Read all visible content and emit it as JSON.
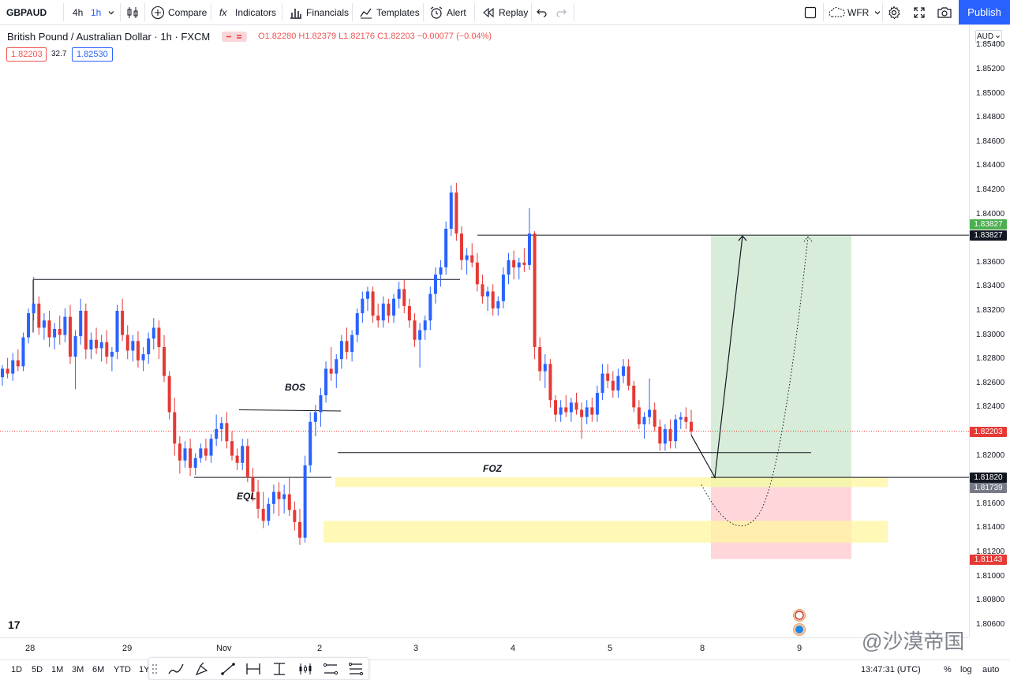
{
  "toolbar": {
    "symbol": "GBPAUD",
    "interval_4h": "4h",
    "interval_1h": "1h",
    "compare": "Compare",
    "indicators": "Indicators",
    "financials": "Financials",
    "templates": "Templates",
    "alert": "Alert",
    "replay": "Replay",
    "layout_name": "WFR",
    "publish": "Publish"
  },
  "legend": {
    "title": "British Pound / Australian Dollar · 1h · FXCM",
    "ohlc": "O1.82280 H1.82379 L1.82176 C1.82203 −0.00077 (−0.04%)",
    "bid": "1.82203",
    "spread": "32.7",
    "ask": "1.82530"
  },
  "colors": {
    "up": "#2962ff",
    "down": "#e53935",
    "accent": "#2962ff",
    "zone_yellow": "#fff59d",
    "zone_green": "#c8e6c9",
    "zone_red": "#ffcdd2"
  },
  "price_axis": {
    "currency": "AUD",
    "ticks": [
      "1.85400",
      "1.85200",
      "1.85000",
      "1.84800",
      "1.84600",
      "1.84400",
      "1.84200",
      "1.84000",
      "1.83600",
      "1.83400",
      "1.83200",
      "1.83000",
      "1.82800",
      "1.82600",
      "1.82400",
      "1.82000",
      "1.81600",
      "1.81400",
      "1.81200",
      "1.81000",
      "1.80800",
      "1.80600"
    ],
    "labels": [
      {
        "text": "1.83827",
        "color": "#4caf50",
        "price": 1.8392
      },
      {
        "text": "1.83827",
        "color": "#131722",
        "price": 1.83827
      },
      {
        "text": "1.82203",
        "color": "#e53935",
        "price": 1.82203
      },
      {
        "text": "1.81820",
        "color": "#131722",
        "price": 1.8182
      },
      {
        "text": "1.81739",
        "color": "#787b86",
        "price": 1.81739
      },
      {
        "text": "1.81143",
        "color": "#e53935",
        "price": 1.81143
      }
    ]
  },
  "time_axis": {
    "ticks": [
      "28",
      "29",
      "Nov",
      "2",
      "3",
      "4",
      "5",
      "8",
      "9"
    ]
  },
  "annotations": {
    "bos": "BOS",
    "eql": "EQL",
    "foz": "FOZ"
  },
  "ranges": [
    "1D",
    "5D",
    "1M",
    "3M",
    "6M",
    "YTD",
    "1Y"
  ],
  "bottom_right": {
    "clock": "13:47:31 (UTC)",
    "percent": "%",
    "log": "log",
    "auto": "auto"
  },
  "watermark": "@沙漠帝国",
  "logo": "17",
  "chart_data": {
    "type": "candlestick",
    "symbol": "GBPAUD",
    "interval": "1h",
    "last_close": 1.82203,
    "ylim": [
      1.8045,
      1.855
    ],
    "levels": {
      "take_profit": 1.83827,
      "entry": 1.8182,
      "stop": 1.81143,
      "bos": 1.8238,
      "eql": 1.8182,
      "foz_line": 1.82025,
      "swing_high_line": 1.8346
    },
    "candles": [
      [
        1.8265,
        1.8275,
        1.8258,
        1.8272
      ],
      [
        1.8272,
        1.8281,
        1.8264,
        1.8268
      ],
      [
        1.8268,
        1.8285,
        1.8262,
        1.8279
      ],
      [
        1.8279,
        1.8288,
        1.827,
        1.8274
      ],
      [
        1.8274,
        1.8302,
        1.827,
        1.8298
      ],
      [
        1.8298,
        1.8322,
        1.8293,
        1.8318
      ],
      [
        1.8318,
        1.8348,
        1.8312,
        1.8326
      ],
      [
        1.8326,
        1.8332,
        1.83,
        1.8306
      ],
      [
        1.8306,
        1.8318,
        1.8296,
        1.8312
      ],
      [
        1.8312,
        1.832,
        1.829,
        1.8298
      ],
      [
        1.8298,
        1.831,
        1.8288,
        1.8305
      ],
      [
        1.8305,
        1.8316,
        1.8292,
        1.83
      ],
      [
        1.83,
        1.8322,
        1.8294,
        1.8315
      ],
      [
        1.8315,
        1.8325,
        1.8276,
        1.8282
      ],
      [
        1.8282,
        1.8304,
        1.8255,
        1.8299
      ],
      [
        1.8299,
        1.833,
        1.8292,
        1.832
      ],
      [
        1.832,
        1.8326,
        1.828,
        1.8288
      ],
      [
        1.8288,
        1.8302,
        1.828,
        1.8296
      ],
      [
        1.8296,
        1.8306,
        1.8284,
        1.8289
      ],
      [
        1.8289,
        1.83,
        1.8278,
        1.8294
      ],
      [
        1.8294,
        1.8304,
        1.8276,
        1.8282
      ],
      [
        1.8282,
        1.829,
        1.827,
        1.8286
      ],
      [
        1.8286,
        1.8325,
        1.828,
        1.832
      ],
      [
        1.832,
        1.833,
        1.8295,
        1.83
      ],
      [
        1.83,
        1.8308,
        1.828,
        1.8287
      ],
      [
        1.8287,
        1.83,
        1.8278,
        1.8295
      ],
      [
        1.8295,
        1.8303,
        1.8273,
        1.8279
      ],
      [
        1.8279,
        1.829,
        1.827,
        1.8284
      ],
      [
        1.8284,
        1.8302,
        1.8276,
        1.8297
      ],
      [
        1.8297,
        1.8314,
        1.8288,
        1.8306
      ],
      [
        1.8306,
        1.8312,
        1.828,
        1.829
      ],
      [
        1.829,
        1.83,
        1.8261,
        1.8266
      ],
      [
        1.8266,
        1.827,
        1.823,
        1.8236
      ],
      [
        1.8236,
        1.8248,
        1.82,
        1.821
      ],
      [
        1.821,
        1.8216,
        1.8185,
        1.8196
      ],
      [
        1.8196,
        1.8212,
        1.819,
        1.8206
      ],
      [
        1.8206,
        1.8214,
        1.8183,
        1.819
      ],
      [
        1.819,
        1.8202,
        1.8184,
        1.8198
      ],
      [
        1.8198,
        1.821,
        1.8194,
        1.8206
      ],
      [
        1.8206,
        1.8214,
        1.8196,
        1.82
      ],
      [
        1.82,
        1.8218,
        1.8194,
        1.8214
      ],
      [
        1.8214,
        1.8234,
        1.8208,
        1.8222
      ],
      [
        1.8222,
        1.8232,
        1.8212,
        1.8227
      ],
      [
        1.8227,
        1.8236,
        1.8206,
        1.8212
      ],
      [
        1.8212,
        1.822,
        1.8196,
        1.82
      ],
      [
        1.82,
        1.8206,
        1.8188,
        1.8194
      ],
      [
        1.8194,
        1.8214,
        1.8188,
        1.8208
      ],
      [
        1.8208,
        1.8214,
        1.8178,
        1.8182
      ],
      [
        1.8182,
        1.819,
        1.8162,
        1.817
      ],
      [
        1.817,
        1.818,
        1.8148,
        1.8156
      ],
      [
        1.8156,
        1.817,
        1.814,
        1.8146
      ],
      [
        1.8146,
        1.8165,
        1.8142,
        1.816
      ],
      [
        1.816,
        1.8176,
        1.8152,
        1.817
      ],
      [
        1.817,
        1.8178,
        1.815,
        1.8164
      ],
      [
        1.8164,
        1.8176,
        1.8152,
        1.8168
      ],
      [
        1.8168,
        1.8182,
        1.815,
        1.8155
      ],
      [
        1.8155,
        1.8162,
        1.8138,
        1.8145
      ],
      [
        1.8145,
        1.8156,
        1.8126,
        1.8132
      ],
      [
        1.8132,
        1.82,
        1.8128,
        1.8192
      ],
      [
        1.8192,
        1.8236,
        1.8186,
        1.8228
      ],
      [
        1.8228,
        1.8242,
        1.8216,
        1.8236
      ],
      [
        1.8236,
        1.8256,
        1.8224,
        1.825
      ],
      [
        1.825,
        1.8278,
        1.8244,
        1.8272
      ],
      [
        1.8272,
        1.829,
        1.8262,
        1.8268
      ],
      [
        1.8268,
        1.8284,
        1.8256,
        1.828
      ],
      [
        1.828,
        1.83,
        1.8272,
        1.8295
      ],
      [
        1.8295,
        1.8306,
        1.828,
        1.8286
      ],
      [
        1.8286,
        1.8304,
        1.8278,
        1.83
      ],
      [
        1.83,
        1.8322,
        1.8294,
        1.8318
      ],
      [
        1.8318,
        1.8336,
        1.831,
        1.833
      ],
      [
        1.833,
        1.834,
        1.832,
        1.8336
      ],
      [
        1.8336,
        1.834,
        1.831,
        1.8316
      ],
      [
        1.8316,
        1.8326,
        1.8306,
        1.8312
      ],
      [
        1.8312,
        1.8332,
        1.8306,
        1.8326
      ],
      [
        1.8326,
        1.833,
        1.831,
        1.8316
      ],
      [
        1.8316,
        1.8334,
        1.831,
        1.833
      ],
      [
        1.833,
        1.8344,
        1.8322,
        1.8338
      ],
      [
        1.8338,
        1.8346,
        1.8318,
        1.8324
      ],
      [
        1.8324,
        1.833,
        1.8306,
        1.8312
      ],
      [
        1.8312,
        1.8318,
        1.829,
        1.8296
      ],
      [
        1.8296,
        1.831,
        1.8273,
        1.8304
      ],
      [
        1.8304,
        1.8316,
        1.8296,
        1.8312
      ],
      [
        1.8312,
        1.834,
        1.8304,
        1.8334
      ],
      [
        1.8334,
        1.8356,
        1.8326,
        1.835
      ],
      [
        1.835,
        1.8362,
        1.834,
        1.8356
      ],
      [
        1.8356,
        1.8394,
        1.835,
        1.8388
      ],
      [
        1.8388,
        1.8424,
        1.8382,
        1.8418
      ],
      [
        1.8418,
        1.8426,
        1.8378,
        1.8384
      ],
      [
        1.8384,
        1.839,
        1.8354,
        1.8362
      ],
      [
        1.8362,
        1.8372,
        1.835,
        1.8366
      ],
      [
        1.8366,
        1.8376,
        1.8356,
        1.836
      ],
      [
        1.836,
        1.8368,
        1.8336,
        1.8342
      ],
      [
        1.8342,
        1.835,
        1.8326,
        1.8332
      ],
      [
        1.8332,
        1.834,
        1.832,
        1.8336
      ],
      [
        1.8336,
        1.8342,
        1.8316,
        1.8322
      ],
      [
        1.8322,
        1.8332,
        1.8316,
        1.8328
      ],
      [
        1.8328,
        1.8356,
        1.8322,
        1.835
      ],
      [
        1.835,
        1.8368,
        1.8342,
        1.8362
      ],
      [
        1.8362,
        1.837,
        1.8346,
        1.8356
      ],
      [
        1.8356,
        1.8364,
        1.8346,
        1.836
      ],
      [
        1.836,
        1.8372,
        1.8352,
        1.8358
      ],
      [
        1.8358,
        1.8405,
        1.8354,
        1.8384
      ],
      [
        1.8384,
        1.8386,
        1.828,
        1.829
      ],
      [
        1.829,
        1.8298,
        1.8262,
        1.827
      ],
      [
        1.827,
        1.8284,
        1.8256,
        1.8276
      ],
      [
        1.8276,
        1.828,
        1.824,
        1.8246
      ],
      [
        1.8246,
        1.825,
        1.8228,
        1.8234
      ],
      [
        1.8234,
        1.8246,
        1.8228,
        1.824
      ],
      [
        1.824,
        1.825,
        1.8232,
        1.8236
      ],
      [
        1.8236,
        1.8248,
        1.8228,
        1.8244
      ],
      [
        1.8244,
        1.8252,
        1.8234,
        1.8238
      ],
      [
        1.8238,
        1.8244,
        1.8214,
        1.8232
      ],
      [
        1.8232,
        1.8246,
        1.8226,
        1.824
      ],
      [
        1.824,
        1.8248,
        1.8228,
        1.8234
      ],
      [
        1.8234,
        1.8258,
        1.8228,
        1.8252
      ],
      [
        1.8252,
        1.8276,
        1.8246,
        1.8268
      ],
      [
        1.8268,
        1.8276,
        1.8256,
        1.8262
      ],
      [
        1.8262,
        1.827,
        1.8248,
        1.8254
      ],
      [
        1.8254,
        1.8272,
        1.8248,
        1.8266
      ],
      [
        1.8266,
        1.828,
        1.826,
        1.8274
      ],
      [
        1.8274,
        1.828,
        1.8254,
        1.8258
      ],
      [
        1.8258,
        1.8262,
        1.8236,
        1.824
      ],
      [
        1.824,
        1.8246,
        1.8222,
        1.8226
      ],
      [
        1.8226,
        1.8236,
        1.8214,
        1.8232
      ],
      [
        1.8232,
        1.8264,
        1.8226,
        1.8238
      ],
      [
        1.8238,
        1.8244,
        1.822,
        1.8224
      ],
      [
        1.8224,
        1.823,
        1.8204,
        1.821
      ],
      [
        1.821,
        1.8226,
        1.8204,
        1.8222
      ],
      [
        1.8222,
        1.823,
        1.8206,
        1.8212
      ],
      [
        1.8212,
        1.8234,
        1.8206,
        1.823
      ],
      [
        1.823,
        1.8236,
        1.8222,
        1.8232
      ],
      [
        1.8232,
        1.824,
        1.8222,
        1.8228
      ],
      [
        1.8228,
        1.8238,
        1.8217,
        1.822
      ]
    ]
  }
}
